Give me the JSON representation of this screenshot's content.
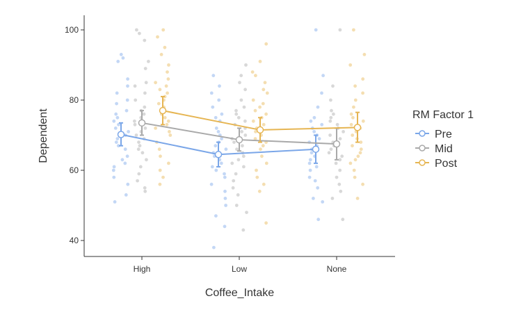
{
  "chart_data": {
    "type": "line",
    "xlabel": "Coffee_Intake",
    "ylabel": "Dependent",
    "categories": [
      "High",
      "Low",
      "None"
    ],
    "ylim": [
      35,
      100
    ],
    "yticks": [
      40,
      60,
      80,
      100
    ],
    "grid": false,
    "legend": {
      "title": "RM Factor 1",
      "position": "right"
    },
    "series": [
      {
        "name": "Pre",
        "color": "#7aa6e8",
        "values": [
          70.2,
          64.5,
          66.0
        ],
        "error_low": [
          67.0,
          61.0,
          62.0
        ],
        "error_high": [
          73.5,
          68.0,
          70.0
        ],
        "raw": [
          [
            51,
            53,
            56,
            58,
            60,
            61,
            62,
            63,
            64,
            66,
            67,
            68,
            69,
            70,
            71,
            72,
            73,
            74,
            75,
            76,
            77,
            79,
            80,
            82,
            84,
            86,
            91,
            92,
            93
          ],
          [
            38,
            44,
            47,
            50,
            52,
            54,
            56,
            58,
            59,
            60,
            61,
            62,
            63,
            64,
            65,
            66,
            67,
            68,
            69,
            70,
            71,
            72,
            74,
            75,
            76,
            78,
            80,
            82,
            84,
            87
          ],
          [
            46,
            51,
            52,
            55,
            57,
            58,
            60,
            61,
            62,
            63,
            64,
            65,
            66,
            67,
            68,
            69,
            70,
            71,
            72,
            73,
            74,
            75,
            78,
            82,
            87,
            100
          ]
        ]
      },
      {
        "name": "Mid",
        "color": "#a9a9a9",
        "values": [
          73.5,
          68.7,
          67.5
        ],
        "error_low": [
          70.0,
          65.5,
          63.0
        ],
        "error_high": [
          77.0,
          72.0,
          72.0
        ],
        "raw": [
          [
            54,
            55,
            57,
            59,
            61,
            63,
            65,
            66,
            67,
            68,
            69,
            70,
            71,
            72,
            73,
            74,
            75,
            76,
            77,
            78,
            80,
            82,
            84,
            85,
            89,
            91,
            97,
            99,
            100
          ],
          [
            43,
            48,
            50,
            53,
            55,
            57,
            59,
            61,
            62,
            63,
            64,
            65,
            66,
            67,
            68,
            69,
            70,
            71,
            72,
            73,
            74,
            75,
            76,
            77,
            78,
            80,
            83,
            85,
            87,
            90
          ],
          [
            46,
            52,
            54,
            56,
            58,
            60,
            62,
            63,
            64,
            65,
            66,
            67,
            68,
            69,
            70,
            71,
            72,
            73,
            74,
            75,
            76,
            77,
            80,
            84,
            100
          ]
        ]
      },
      {
        "name": "Post",
        "color": "#e6b552",
        "values": [
          77.0,
          71.5,
          72.2
        ],
        "error_low": [
          73.0,
          68.0,
          68.0
        ],
        "error_high": [
          81.0,
          75.0,
          76.5
        ],
        "raw": [
          [
            56,
            58,
            60,
            62,
            64,
            66,
            68,
            70,
            71,
            72,
            73,
            74,
            75,
            76,
            77,
            78,
            79,
            80,
            81,
            82,
            83,
            84,
            85,
            86,
            88,
            90,
            93,
            95,
            98,
            100
          ],
          [
            45,
            54,
            56,
            58,
            60,
            62,
            64,
            66,
            67,
            68,
            69,
            70,
            71,
            72,
            73,
            74,
            75,
            76,
            77,
            78,
            79,
            80,
            82,
            83,
            85,
            87,
            88,
            91,
            96
          ],
          [
            52,
            56,
            58,
            60,
            62,
            63,
            64,
            65,
            66,
            67,
            68,
            69,
            70,
            71,
            72,
            73,
            74,
            75,
            76,
            78,
            80,
            82,
            84,
            86,
            90,
            93,
            100
          ]
        ]
      }
    ]
  }
}
